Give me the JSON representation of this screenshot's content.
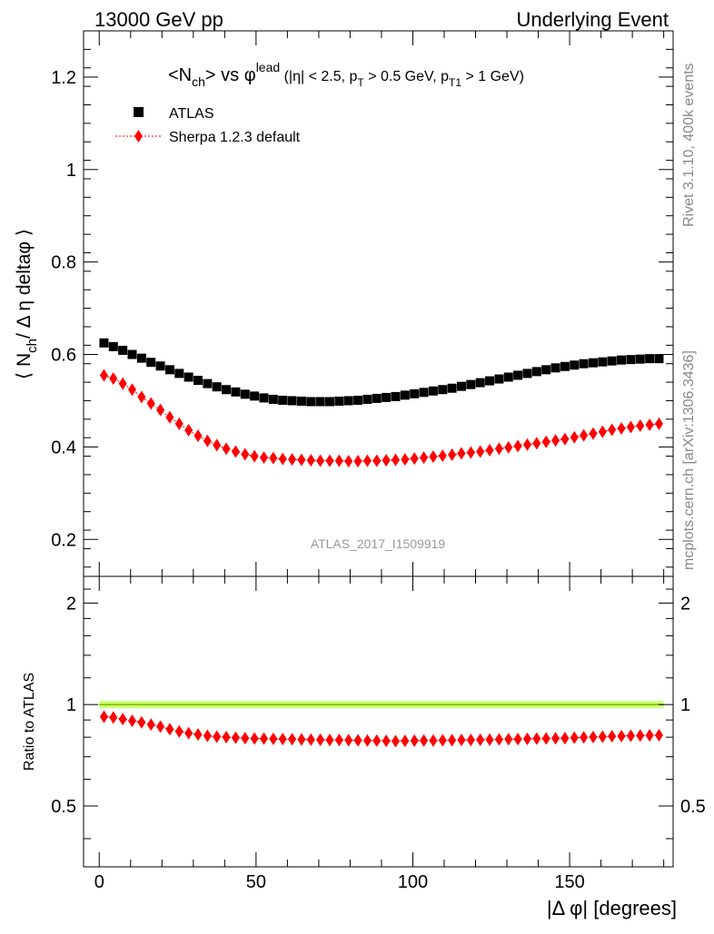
{
  "header": {
    "left": "13000 GeV pp",
    "right": "Underlying Event"
  },
  "side_labels": {
    "rivet": "Rivet 3.1.10,  400k events",
    "mcplots": "mcplots.cern.ch [arXiv:1306.3436]"
  },
  "chart_data": [
    {
      "type": "scatter",
      "title_parts": {
        "main": "<N",
        "ch_sub": "ch",
        "vs": "> vs φ",
        "lead_sup": "lead",
        "cuts1": " (|η| < 2.5, p",
        "t_sub": "T",
        "cuts2": " > 0.5 GeV, p",
        "t1_sub": "T1",
        "cuts3": " > 1 GeV)"
      },
      "ylabel_parts": {
        "open": "⟨ N",
        "ch_sub": "ch",
        "rest": "/ Δ η deltaφ ⟩"
      },
      "analysis_label": "ATLAS_2017_I1509919",
      "xlim": [
        -5,
        183
      ],
      "ylim": [
        0.12,
        1.3
      ],
      "yticks": [
        0.2,
        0.4,
        0.6,
        0.8,
        1.0,
        1.2
      ],
      "ytick_labels": [
        "0.2",
        "0.4",
        "0.6",
        "0.8",
        "1",
        "1.2"
      ],
      "legend_position": "top-left",
      "x": [
        1.5,
        4.5,
        7.5,
        10.5,
        13.5,
        16.5,
        19.5,
        22.5,
        25.5,
        28.5,
        31.5,
        34.5,
        37.5,
        40.5,
        43.5,
        46.5,
        49.5,
        52.5,
        55.5,
        58.5,
        61.5,
        64.5,
        67.5,
        70.5,
        73.5,
        76.5,
        79.5,
        82.5,
        85.5,
        88.5,
        91.5,
        94.5,
        97.5,
        100.5,
        103.5,
        106.5,
        109.5,
        112.5,
        115.5,
        118.5,
        121.5,
        124.5,
        127.5,
        130.5,
        133.5,
        136.5,
        139.5,
        142.5,
        145.5,
        148.5,
        151.5,
        154.5,
        157.5,
        160.5,
        163.5,
        166.5,
        169.5,
        172.5,
        175.5,
        178.5
      ],
      "series": [
        {
          "name": "ATLAS",
          "color": "#000000",
          "marker": "square",
          "values": [
            0.625,
            0.617,
            0.609,
            0.6,
            0.592,
            0.583,
            0.575,
            0.567,
            0.559,
            0.551,
            0.544,
            0.537,
            0.53,
            0.524,
            0.519,
            0.514,
            0.51,
            0.506,
            0.503,
            0.501,
            0.5,
            0.499,
            0.498,
            0.498,
            0.498,
            0.499,
            0.5,
            0.501,
            0.503,
            0.505,
            0.507,
            0.509,
            0.512,
            0.515,
            0.518,
            0.521,
            0.524,
            0.527,
            0.531,
            0.535,
            0.539,
            0.543,
            0.547,
            0.551,
            0.555,
            0.559,
            0.563,
            0.567,
            0.571,
            0.574,
            0.577,
            0.58,
            0.582,
            0.584,
            0.586,
            0.588,
            0.589,
            0.59,
            0.591,
            0.591
          ]
        },
        {
          "name": "Sherpa 1.2.3 default",
          "color": "#ff0000",
          "marker": "diamond",
          "values": [
            0.555,
            0.548,
            0.537,
            0.524,
            0.508,
            0.494,
            0.48,
            0.464,
            0.45,
            0.436,
            0.424,
            0.413,
            0.404,
            0.396,
            0.39,
            0.384,
            0.38,
            0.377,
            0.376,
            0.374,
            0.373,
            0.372,
            0.371,
            0.37,
            0.37,
            0.37,
            0.369,
            0.369,
            0.37,
            0.37,
            0.371,
            0.372,
            0.373,
            0.375,
            0.377,
            0.379,
            0.381,
            0.383,
            0.386,
            0.388,
            0.39,
            0.393,
            0.396,
            0.399,
            0.402,
            0.405,
            0.408,
            0.411,
            0.414,
            0.417,
            0.421,
            0.425,
            0.429,
            0.433,
            0.437,
            0.44,
            0.443,
            0.446,
            0.448,
            0.45
          ]
        }
      ]
    },
    {
      "type": "scatter",
      "ylabel": "Ratio to ATLAS",
      "xlabel": "|Δ φ| [degrees]",
      "xlim": [
        -5,
        183
      ],
      "xticks": [
        0,
        50,
        100,
        150
      ],
      "xtick_labels": [
        "0",
        "50",
        "100",
        "150"
      ],
      "ylim": [
        0.33,
        2.4
      ],
      "yscale": "log",
      "yticks": [
        0.5,
        1,
        2
      ],
      "ytick_labels": [
        "0.5",
        "1",
        "2"
      ],
      "reference_band": {
        "value": 1.0,
        "half_width": 0.025,
        "fill_color": "#ccff77",
        "line_color": "#7db800"
      },
      "series": [
        {
          "name": "Sherpa 1.2.3 default",
          "color": "#ff0000",
          "marker": "diamond",
          "values": [
            0.92,
            0.915,
            0.905,
            0.895,
            0.885,
            0.872,
            0.86,
            0.845,
            0.832,
            0.822,
            0.815,
            0.808,
            0.803,
            0.8,
            0.797,
            0.795,
            0.793,
            0.792,
            0.791,
            0.79,
            0.789,
            0.788,
            0.787,
            0.786,
            0.785,
            0.785,
            0.784,
            0.783,
            0.782,
            0.781,
            0.78,
            0.779,
            0.78,
            0.781,
            0.782,
            0.782,
            0.783,
            0.784,
            0.785,
            0.785,
            0.786,
            0.787,
            0.788,
            0.789,
            0.79,
            0.791,
            0.792,
            0.793,
            0.794,
            0.795,
            0.797,
            0.799,
            0.801,
            0.803,
            0.805,
            0.806,
            0.808,
            0.809,
            0.81,
            0.811
          ]
        }
      ]
    }
  ]
}
